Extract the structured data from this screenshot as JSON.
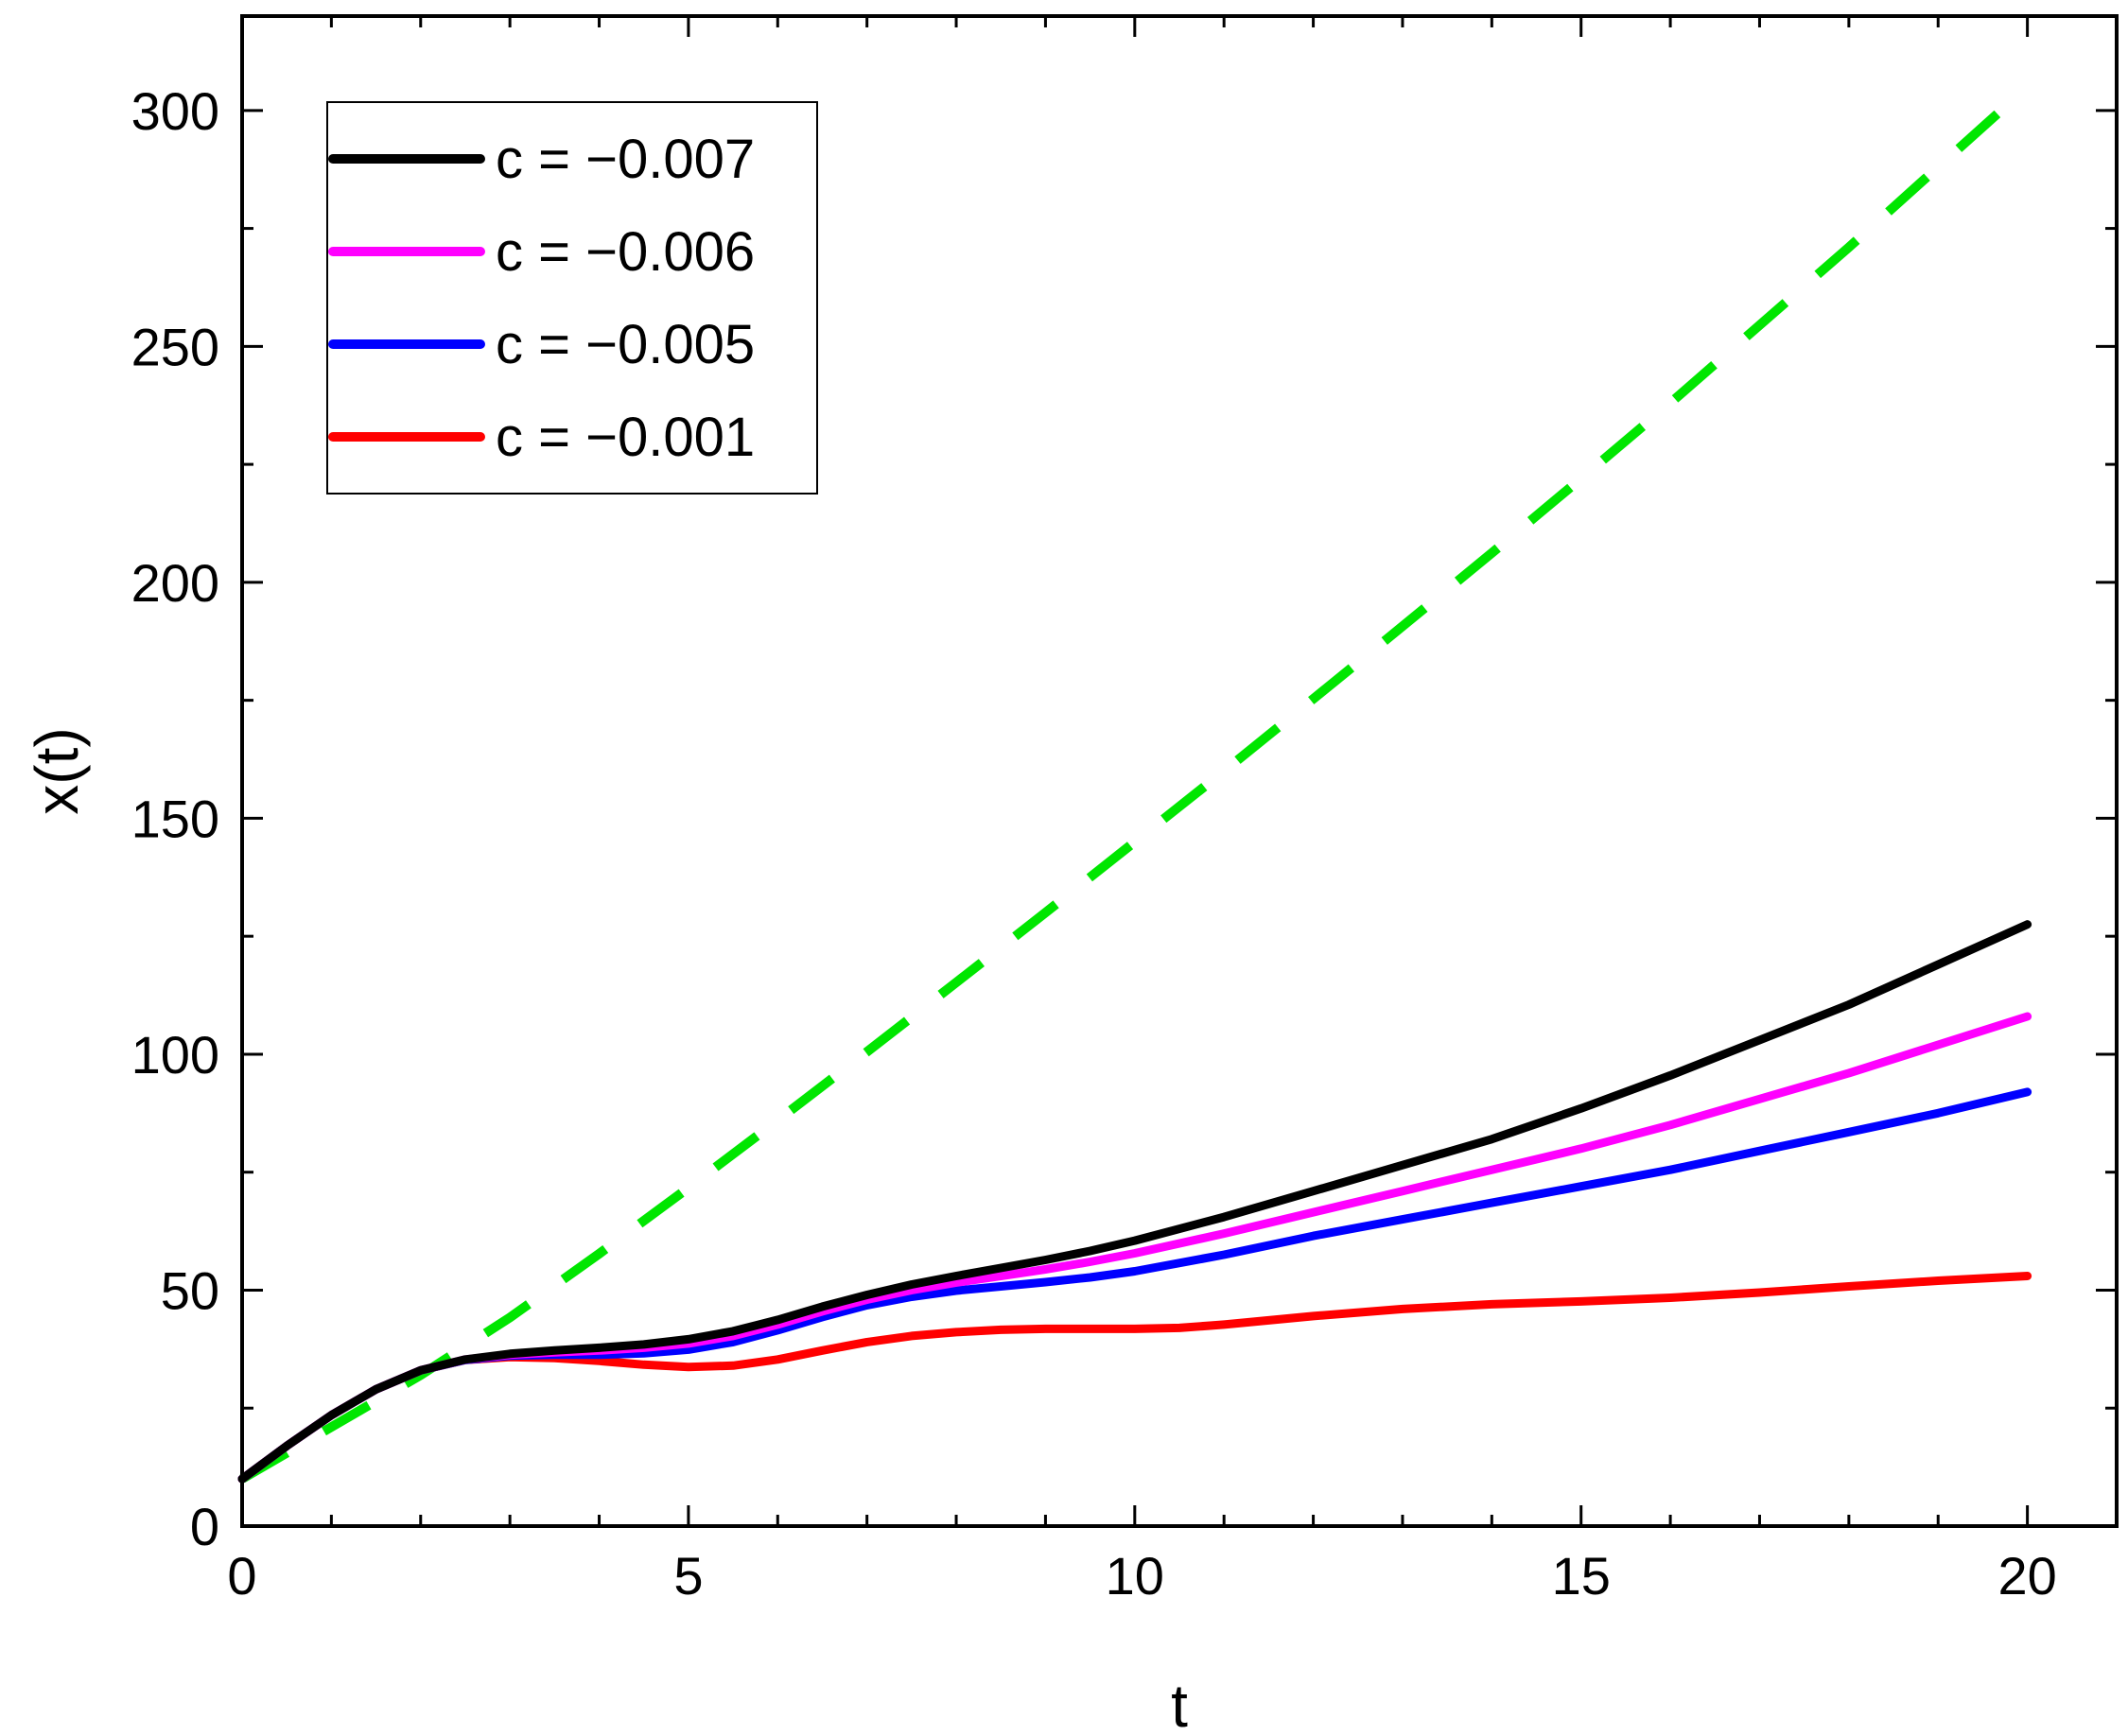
{
  "chart_data": {
    "type": "line",
    "title": "",
    "xlabel": "t",
    "ylabel": "x(t)",
    "xlim": [
      0,
      21
    ],
    "ylim": [
      0,
      320
    ],
    "xticks": [
      0,
      5,
      10,
      15,
      20
    ],
    "xtick_labels": [
      "0",
      "5",
      "10",
      "15",
      "20"
    ],
    "yticks": [
      0,
      50,
      100,
      150,
      200,
      250,
      300
    ],
    "ytick_labels": [
      "0",
      "50",
      "100",
      "150",
      "200",
      "250",
      "300"
    ],
    "x_minor_step": 1,
    "y_minor_step": 25,
    "grid": false,
    "legend_position": "top-left",
    "series": [
      {
        "name": "c = −0.007",
        "color": "#000000",
        "style": "solid",
        "points": [
          [
            0,
            10
          ],
          [
            0.5,
            17
          ],
          [
            1,
            23.5
          ],
          [
            1.5,
            29
          ],
          [
            2,
            33
          ],
          [
            2.5,
            35.3
          ],
          [
            3,
            36.5
          ],
          [
            3.5,
            37.2
          ],
          [
            4,
            37.8
          ],
          [
            4.5,
            38.5
          ],
          [
            5,
            39.6
          ],
          [
            5.5,
            41.3
          ],
          [
            6,
            43.7
          ],
          [
            6.5,
            46.5
          ],
          [
            7,
            49
          ],
          [
            7.5,
            51.2
          ],
          [
            8,
            53
          ],
          [
            8.5,
            54.7
          ],
          [
            9,
            56.4
          ],
          [
            9.5,
            58.3
          ],
          [
            10,
            60.5
          ],
          [
            11,
            65.5
          ],
          [
            12,
            71
          ],
          [
            13,
            76.5
          ],
          [
            14,
            82
          ],
          [
            15,
            88.5
          ],
          [
            16,
            95.5
          ],
          [
            17,
            103
          ],
          [
            18,
            110.5
          ],
          [
            19,
            119
          ],
          [
            20,
            127.5
          ]
        ]
      },
      {
        "name": "c = −0.006",
        "color": "#ff00ff",
        "style": "solid",
        "points": [
          [
            0,
            10
          ],
          [
            0.5,
            17
          ],
          [
            1,
            23.5
          ],
          [
            1.5,
            29
          ],
          [
            2,
            33
          ],
          [
            2.5,
            35.3
          ],
          [
            3,
            36.3
          ],
          [
            3.5,
            36.8
          ],
          [
            4,
            37.2
          ],
          [
            4.5,
            37.8
          ],
          [
            5,
            38.7
          ],
          [
            5.5,
            40.3
          ],
          [
            6,
            42.7
          ],
          [
            6.5,
            45.5
          ],
          [
            7,
            48
          ],
          [
            7.5,
            50
          ],
          [
            8,
            51.6
          ],
          [
            8.5,
            53
          ],
          [
            9,
            54.4
          ],
          [
            9.5,
            56
          ],
          [
            10,
            57.8
          ],
          [
            11,
            62
          ],
          [
            12,
            66.5
          ],
          [
            13,
            71
          ],
          [
            14,
            75.5
          ],
          [
            15,
            80
          ],
          [
            16,
            85
          ],
          [
            17,
            90.5
          ],
          [
            18,
            96
          ],
          [
            19,
            102
          ],
          [
            20,
            108
          ]
        ]
      },
      {
        "name": "c = −0.005",
        "color": "#0000ff",
        "style": "solid",
        "points": [
          [
            0,
            10
          ],
          [
            0.5,
            17
          ],
          [
            1,
            23.5
          ],
          [
            1.5,
            29
          ],
          [
            2,
            33
          ],
          [
            2.5,
            35.2
          ],
          [
            3,
            36.1
          ],
          [
            3.5,
            36.3
          ],
          [
            4,
            36.3
          ],
          [
            4.5,
            36.6
          ],
          [
            5,
            37.4
          ],
          [
            5.5,
            39
          ],
          [
            6,
            41.5
          ],
          [
            6.5,
            44.3
          ],
          [
            7,
            46.8
          ],
          [
            7.5,
            48.6
          ],
          [
            8,
            49.9
          ],
          [
            8.5,
            50.8
          ],
          [
            9,
            51.7
          ],
          [
            9.5,
            52.7
          ],
          [
            10,
            54
          ],
          [
            11,
            57.5
          ],
          [
            12,
            61.5
          ],
          [
            13,
            65
          ],
          [
            14,
            68.5
          ],
          [
            15,
            72
          ],
          [
            16,
            75.5
          ],
          [
            17,
            79.5
          ],
          [
            18,
            83.5
          ],
          [
            19,
            87.5
          ],
          [
            20,
            92
          ]
        ]
      },
      {
        "name": "c = −0.001",
        "color": "#ff0000",
        "style": "solid",
        "points": [
          [
            0,
            10
          ],
          [
            0.5,
            17
          ],
          [
            1,
            23.5
          ],
          [
            1.5,
            29
          ],
          [
            2,
            33
          ],
          [
            2.5,
            35.2
          ],
          [
            3,
            35.8
          ],
          [
            3.5,
            35.6
          ],
          [
            4,
            35
          ],
          [
            4.5,
            34.2
          ],
          [
            5,
            33.7
          ],
          [
            5.5,
            34
          ],
          [
            6,
            35.3
          ],
          [
            6.5,
            37.2
          ],
          [
            7,
            39
          ],
          [
            7.5,
            40.3
          ],
          [
            8,
            41.1
          ],
          [
            8.5,
            41.6
          ],
          [
            9,
            41.8
          ],
          [
            9.5,
            41.8
          ],
          [
            10,
            41.8
          ],
          [
            10.5,
            42
          ],
          [
            11,
            42.7
          ],
          [
            12,
            44.5
          ],
          [
            13,
            46
          ],
          [
            14,
            47
          ],
          [
            15,
            47.6
          ],
          [
            16,
            48.4
          ],
          [
            17,
            49.5
          ],
          [
            18,
            50.8
          ],
          [
            19,
            52
          ],
          [
            20,
            53
          ]
        ]
      },
      {
        "name": "",
        "color": "#00e600",
        "style": "dashed",
        "points": [
          [
            0,
            10
          ],
          [
            1,
            21
          ],
          [
            2,
            32
          ],
          [
            3,
            44.2
          ],
          [
            4,
            57.7
          ],
          [
            5,
            71.7
          ],
          [
            6,
            86
          ],
          [
            7,
            100.5
          ],
          [
            8,
            115.2
          ],
          [
            9,
            130
          ],
          [
            10,
            145
          ],
          [
            11,
            160
          ],
          [
            12,
            175.3
          ],
          [
            13,
            190.7
          ],
          [
            14,
            206.2
          ],
          [
            15,
            222
          ],
          [
            16,
            238
          ],
          [
            17,
            254.5
          ],
          [
            18,
            271
          ],
          [
            19,
            288
          ],
          [
            20,
            305
          ]
        ]
      }
    ]
  }
}
